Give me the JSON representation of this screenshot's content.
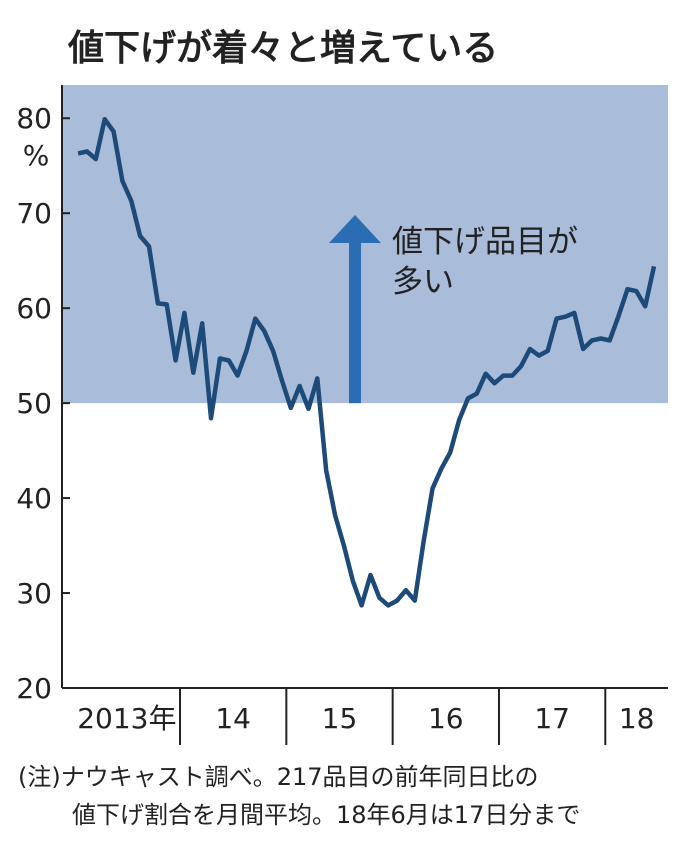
{
  "chart_data": {
    "type": "line",
    "title": "値下げが着々と増えている",
    "y_unit": "%",
    "year_labels": [
      "2013年",
      "14",
      "15",
      "16",
      "17",
      "18"
    ],
    "categories": [
      null,
      null,
      null,
      null,
      null,
      null,
      null,
      null,
      null,
      null,
      null,
      null,
      null,
      null,
      null,
      null,
      null,
      null,
      null,
      null,
      null,
      null,
      null,
      null,
      null,
      null,
      null,
      null,
      null,
      null,
      null,
      null,
      null,
      null,
      null,
      null,
      null,
      null,
      null,
      null,
      null,
      null,
      null,
      null,
      null,
      null,
      null,
      null,
      null,
      null,
      null,
      null,
      null,
      null,
      null,
      null,
      null,
      null,
      null,
      null,
      null,
      null,
      null,
      null,
      null,
      null
    ],
    "values": [
      76.3,
      76.5,
      75.7,
      79.9,
      78.6,
      73.4,
      71.3,
      67.6,
      66.5,
      60.5,
      60.4,
      54.5,
      59.5,
      53.2,
      58.4,
      48.4,
      54.7,
      54.5,
      52.9,
      55.5,
      58.9,
      57.6,
      55.5,
      52.4,
      49.5,
      51.8,
      49.4,
      52.6,
      42.9,
      38.2,
      35.0,
      31.3,
      28.7,
      31.9,
      29.5,
      28.7,
      29.2,
      30.3,
      29.2,
      35.5,
      41.0,
      43.1,
      44.8,
      48.2,
      50.5,
      51.0,
      53.1,
      52.1,
      52.9,
      52.9,
      53.9,
      55.7,
      55.0,
      55.5,
      58.9,
      59.1,
      59.5,
      55.7,
      56.6,
      56.8,
      56.6,
      59.2,
      62.0,
      61.8,
      60.2,
      64.4
    ],
    "color": "#1d4a78",
    "ylim": [
      20,
      83.5
    ],
    "yticks": [
      20,
      30,
      40,
      50,
      60,
      70,
      80
    ],
    "band_from": 50,
    "band_color": "#a9bcd9",
    "annotation": [
      "値下げ品目が",
      "多い"
    ],
    "note": [
      "(注)ナウキャスト調べ。217品目の前年同日比の",
      "値下げ割合を月間平均。18年6月は17日分まで"
    ]
  }
}
